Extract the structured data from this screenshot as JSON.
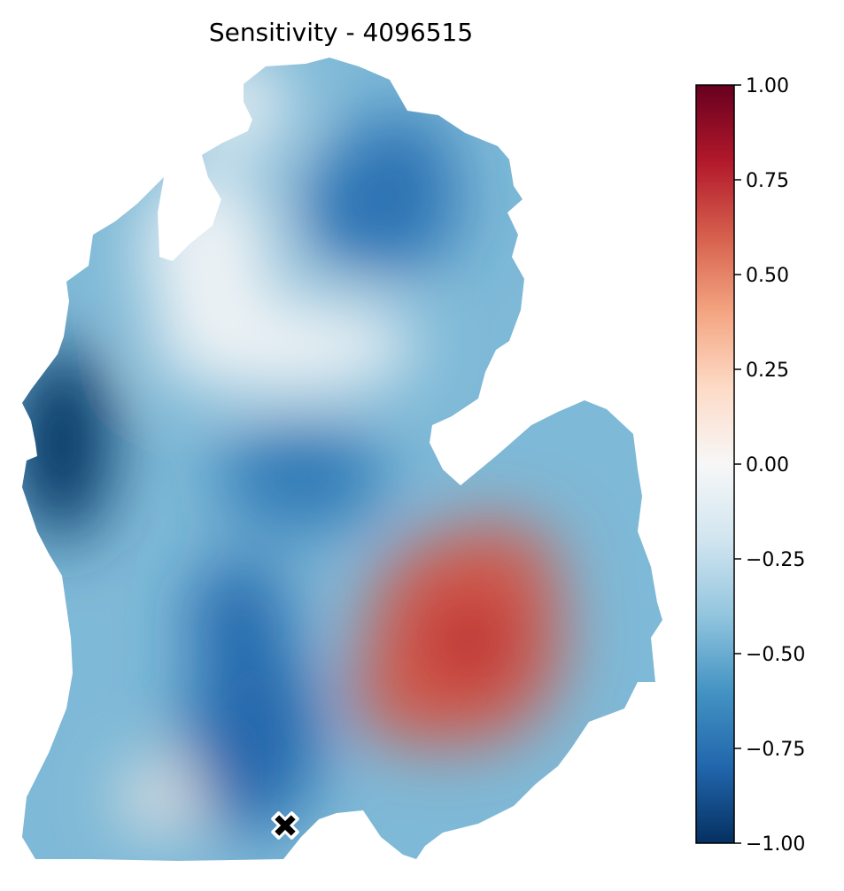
{
  "chart_data": {
    "type": "heatmap",
    "title": "Sensitivity - 4096515",
    "xlabel": "",
    "ylabel": "",
    "colormap": "RdBu_r",
    "colorbar": {
      "vmin": -1.0,
      "vmax": 1.0,
      "ticks": [
        1.0,
        0.75,
        0.5,
        0.25,
        0.0,
        -0.25,
        -0.5,
        -0.75,
        -1.0
      ],
      "tick_labels": [
        "1.00",
        "0.75",
        "0.50",
        "0.25",
        "0.00",
        "−0.25",
        "−0.50",
        "−0.75",
        "−1.00"
      ],
      "stops": [
        "#053061",
        "#2166ac",
        "#4393c3",
        "#92c5de",
        "#d1e5f0",
        "#f7f7f7",
        "#fddbc7",
        "#f4a582",
        "#d6604d",
        "#b2182b",
        "#67001f"
      ]
    },
    "background_value": -0.45,
    "blobs": [
      {
        "label": "positive-peak",
        "value": 0.62
      },
      {
        "label": "west-coast-low",
        "value": -1.0
      },
      {
        "label": "south-central-low",
        "value": -0.8
      },
      {
        "label": "northeast-low",
        "value": -0.75
      },
      {
        "label": "central-low",
        "value": -0.72
      },
      {
        "label": "north-neutral",
        "value": -0.05
      },
      {
        "label": "southwest-positive",
        "value": 0.08
      }
    ],
    "marker": {
      "symbol": "x-icon",
      "color": "#000000",
      "edge": "#ffffff"
    }
  }
}
